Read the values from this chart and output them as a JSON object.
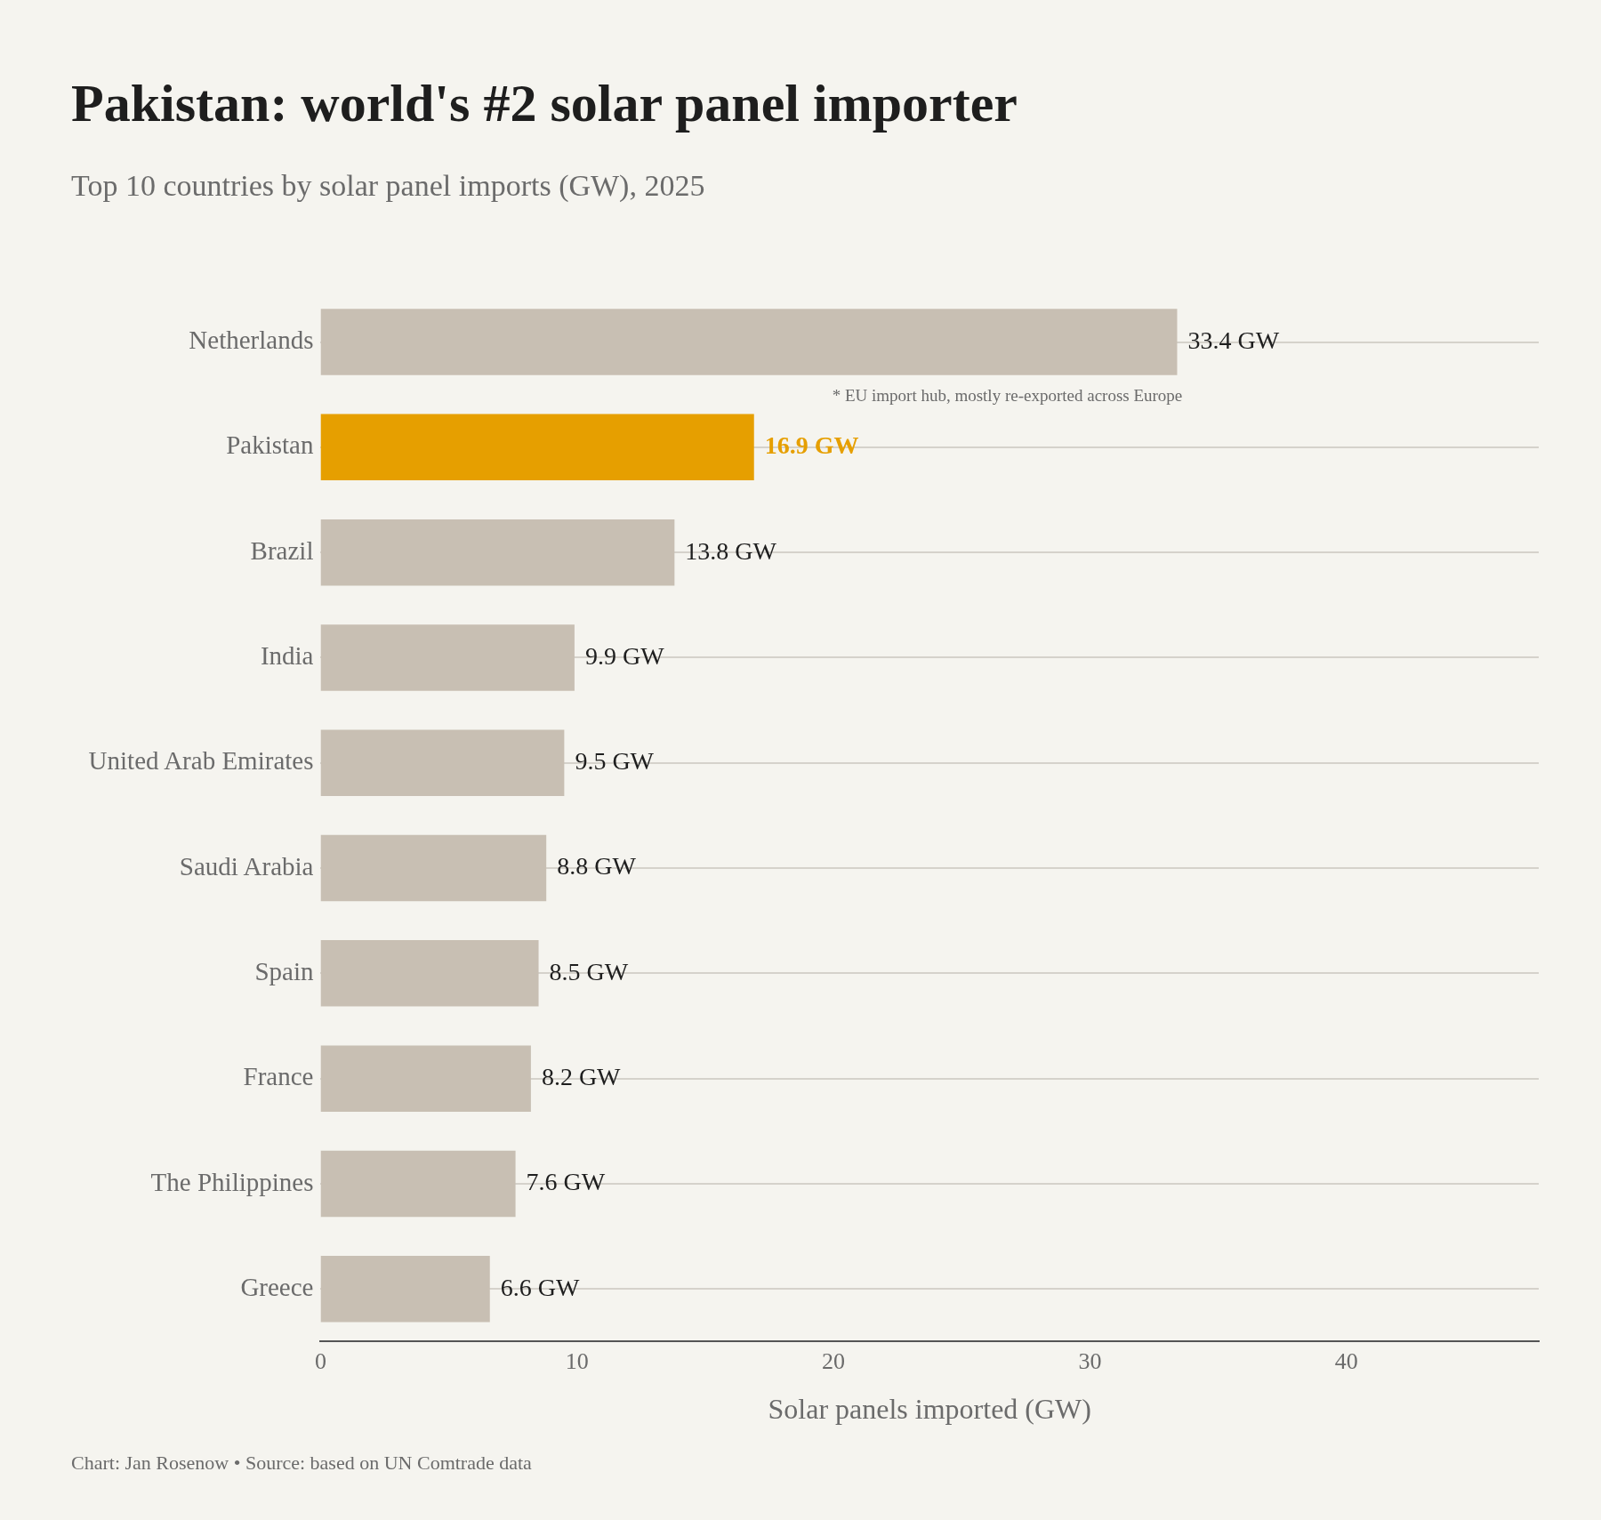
{
  "chart_data": {
    "type": "bar",
    "orientation": "horizontal",
    "title": "Pakistan: world's #2 solar panel importer",
    "subtitle": "Top 10 countries by solar panel imports (GW), 2025",
    "xlabel": "Solar panels imported (GW)",
    "categories": [
      "Netherlands",
      "Pakistan",
      "Brazil",
      "India",
      "United Arab Emirates",
      "Saudi Arabia",
      "Spain",
      "France",
      "The Philippines",
      "Greece"
    ],
    "values": [
      33.4,
      16.9,
      13.8,
      9.9,
      9.5,
      8.8,
      8.5,
      8.2,
      7.6,
      6.6
    ],
    "value_labels": [
      "33.4 GW",
      "16.9 GW",
      "13.8 GW",
      "9.9 GW",
      "9.5 GW",
      "8.8 GW",
      "8.5 GW",
      "8.2 GW",
      "7.6 GW",
      "6.6 GW"
    ],
    "colors": [
      "#c8bfb3",
      "#e69f00",
      "#c8bfb3",
      "#c8bfb3",
      "#c8bfb3",
      "#c8bfb3",
      "#c8bfb3",
      "#c8bfb3",
      "#c8bfb3",
      "#c8bfb3"
    ],
    "xlim": [
      0,
      47.5
    ],
    "xticks": [
      0,
      10,
      20,
      30,
      40
    ],
    "grid": "y",
    "legend": false,
    "annotations": [
      "* EU import hub, mostly re-exported across Europe",
      "Chart: Jan Rosenow • Source: based on UN Comtrade data"
    ]
  }
}
